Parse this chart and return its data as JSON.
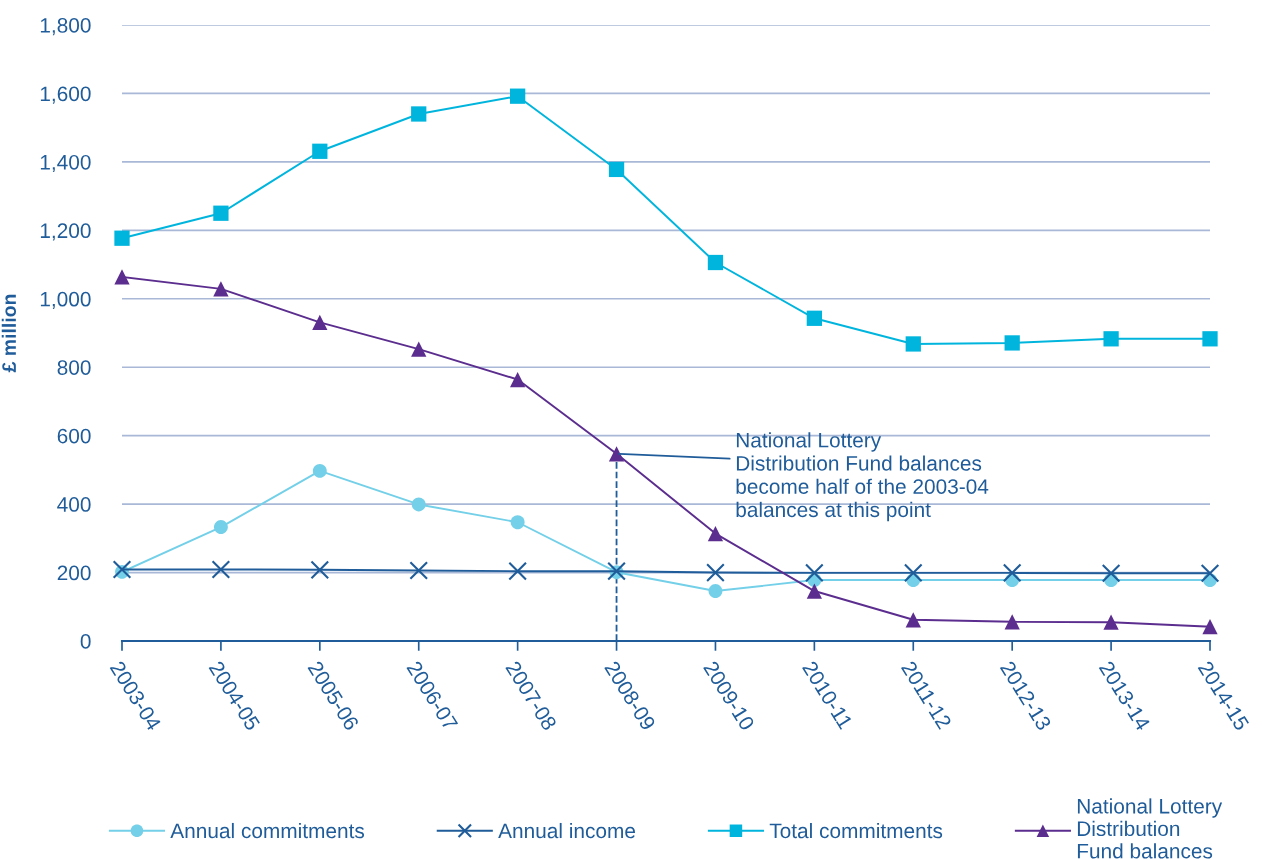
{
  "chart_data": {
    "type": "line",
    "ylabel": "£ million",
    "categories": [
      "2003-04",
      "2004-05",
      "2005-06",
      "2006-07",
      "2007-08",
      "2008-09",
      "2009-10",
      "2010-11",
      "2011-12",
      "2012-13",
      "2013-14",
      "2014-15"
    ],
    "series": [
      {
        "name": "Annual commitments",
        "color": "#73d0e8",
        "marker": "circle",
        "values": [
          202,
          333,
          497,
          399,
          347,
          201,
          146,
          178,
          178,
          178,
          178,
          178
        ]
      },
      {
        "name": "Annual income",
        "color": "#1f5c99",
        "marker": "cross",
        "values": [
          209,
          209,
          208,
          206,
          204,
          204,
          200,
          199,
          199,
          199,
          198,
          198
        ]
      },
      {
        "name": "Total commitments",
        "color": "#00b5dd",
        "marker": "square",
        "values": [
          1177,
          1250,
          1431,
          1540,
          1592,
          1378,
          1106,
          943,
          868,
          871,
          883,
          883
        ]
      },
      {
        "name": "National Lottery\nDistribution\nFund balances",
        "color": "#5b2d8e",
        "marker": "triangle",
        "values": [
          1064,
          1029,
          931,
          853,
          764,
          547,
          314,
          146,
          62,
          56,
          55,
          42
        ]
      }
    ],
    "ylim": [
      0,
      1800
    ],
    "yticks": [
      {
        "value": 0,
        "label": "0"
      },
      {
        "value": 200,
        "label": "200"
      },
      {
        "value": 400,
        "label": "400"
      },
      {
        "value": 600,
        "label": "600"
      },
      {
        "value": 800,
        "label": "800"
      },
      {
        "value": 1000,
        "label": "1,000"
      },
      {
        "value": 1200,
        "label": "1,200"
      },
      {
        "value": 1400,
        "label": "1,400"
      },
      {
        "value": 1600,
        "label": "1,600"
      },
      {
        "value": 1800,
        "label": "1,800"
      }
    ],
    "ref_lines": [
      {
        "axis": "x",
        "value": "2008-09",
        "color": "#1f5c99",
        "line_style": "dashed"
      }
    ],
    "grid": "y",
    "legend": "bottom",
    "line_style": "solid",
    "annotations": [
      {
        "text": "National Lottery\nDistribution Fund balances\nbecome half of the 2003-04\nbalances at this point",
        "x": "2008-09",
        "y": 547
      }
    ]
  }
}
